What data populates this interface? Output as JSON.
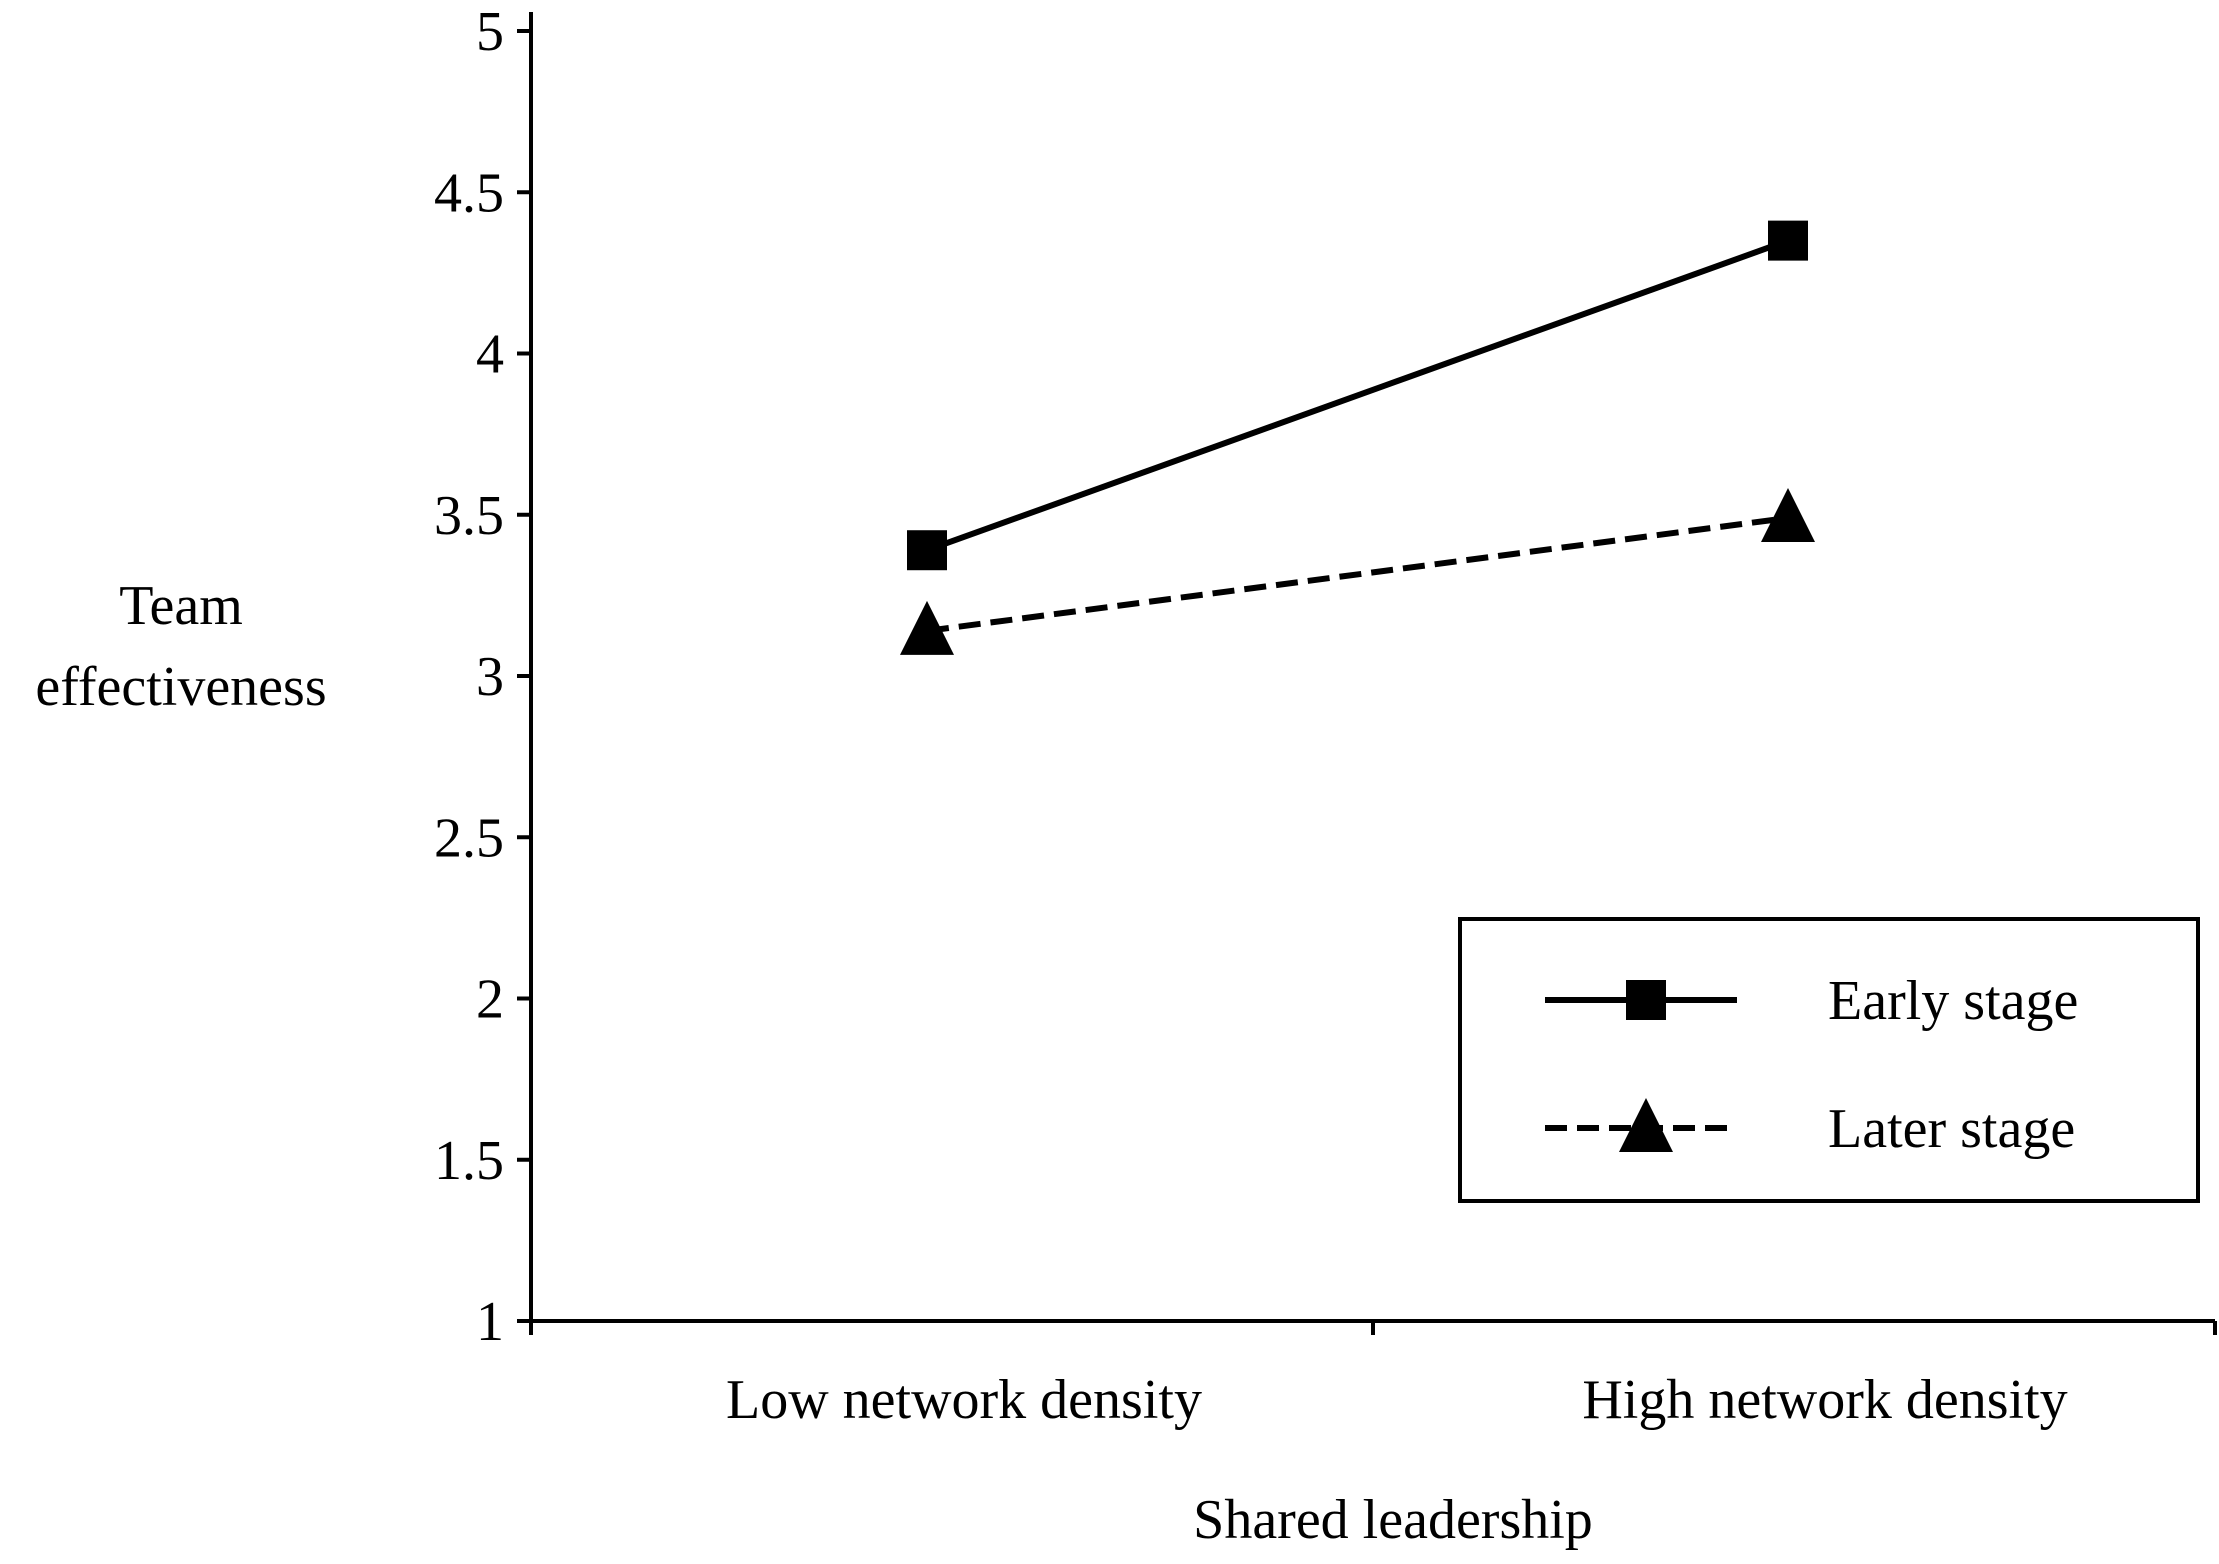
{
  "chart_data": {
    "type": "line",
    "title": "",
    "xlabel": "Shared leadership",
    "ylabel_lines": [
      "Team",
      "effectiveness"
    ],
    "categories": [
      "Low network density",
      "High network density"
    ],
    "ylim": [
      1,
      5
    ],
    "yticks": [
      "1",
      "1.5",
      "2",
      "2.5",
      "3",
      "3.5",
      "4",
      "4.5",
      "5"
    ],
    "grid": false,
    "legend_position": "lower-right",
    "series": [
      {
        "name": "Early stage",
        "values": [
          3.39,
          4.35
        ],
        "marker": "square",
        "line_style": "solid",
        "color": "#000000"
      },
      {
        "name": "Later stage",
        "values": [
          3.14,
          3.49
        ],
        "marker": "triangle",
        "line_style": "dashed",
        "color": "#000000"
      }
    ]
  }
}
